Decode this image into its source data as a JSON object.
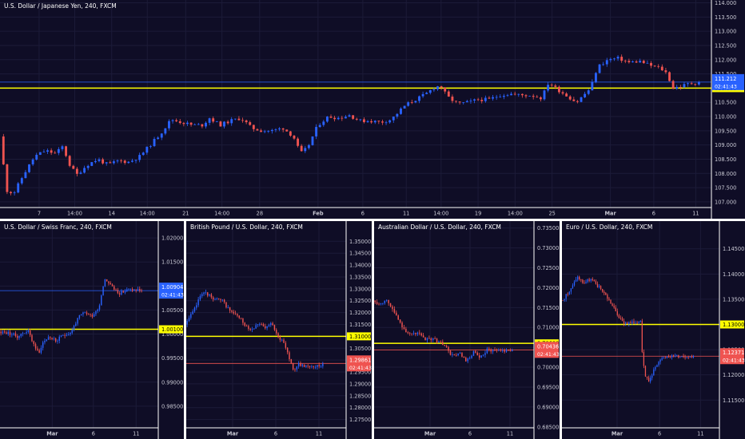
{
  "colors": {
    "background": "#0f0d26",
    "grid": "#1c1b38",
    "axis_text": "#c9c9d4",
    "up_candle": "#2962ff",
    "down_candle": "#ef5350",
    "level_line": "#ffff00",
    "level_label_bg": "#ffff00",
    "price_line_up": "#2962ff",
    "price_line_down": "#ef5350",
    "divider": "#ffffff"
  },
  "chart_data": [
    {
      "id": "usdjpy",
      "type": "candlestick",
      "title": "U.S. Dollar / Japanese Yen, 240, FXCM",
      "ylim": [
        106.8,
        114.1
      ],
      "yticks": [
        "107.000",
        "107.500",
        "108.000",
        "108.500",
        "109.000",
        "109.500",
        "110.000",
        "110.500",
        "111.000",
        "111.500",
        "112.000",
        "112.500",
        "113.000",
        "113.500",
        "114.000"
      ],
      "xticks": [
        "7",
        "14:00",
        "14",
        "14:00",
        "21",
        "14:00",
        "28",
        "Feb",
        "6",
        "11",
        "14:00",
        "19",
        "14:00",
        "25",
        "Mar",
        "6",
        "11"
      ],
      "xtick_pos": [
        0.055,
        0.105,
        0.157,
        0.207,
        0.261,
        0.312,
        0.365,
        0.447,
        0.51,
        0.571,
        0.62,
        0.672,
        0.724,
        0.776,
        0.858,
        0.919,
        0.978
      ],
      "bold_ticks": [
        "Feb",
        "Mar"
      ],
      "level": {
        "value": 111.0,
        "label": "111.000"
      },
      "current": {
        "value": 111.212,
        "label": "111.212",
        "countdown": "02:41:43",
        "direction": "up"
      },
      "path": [
        [
          0,
          109.3
        ],
        [
          0.01,
          107.4
        ],
        [
          0.02,
          107.3
        ],
        [
          0.035,
          108.0
        ],
        [
          0.05,
          108.6
        ],
        [
          0.065,
          108.8
        ],
        [
          0.08,
          108.7
        ],
        [
          0.09,
          108.95
        ],
        [
          0.1,
          108.3
        ],
        [
          0.11,
          107.95
        ],
        [
          0.125,
          108.3
        ],
        [
          0.14,
          108.5
        ],
        [
          0.155,
          108.3
        ],
        [
          0.17,
          108.45
        ],
        [
          0.185,
          108.4
        ],
        [
          0.2,
          108.6
        ],
        [
          0.215,
          109.0
        ],
        [
          0.23,
          109.4
        ],
        [
          0.245,
          109.9
        ],
        [
          0.26,
          109.8
        ],
        [
          0.275,
          109.7
        ],
        [
          0.29,
          109.7
        ],
        [
          0.3,
          109.95
        ],
        [
          0.315,
          109.7
        ],
        [
          0.33,
          109.85
        ],
        [
          0.345,
          109.95
        ],
        [
          0.36,
          109.6
        ],
        [
          0.375,
          109.5
        ],
        [
          0.39,
          109.5
        ],
        [
          0.405,
          109.6
        ],
        [
          0.42,
          109.3
        ],
        [
          0.43,
          108.7
        ],
        [
          0.44,
          108.9
        ],
        [
          0.455,
          109.7
        ],
        [
          0.47,
          110.0
        ],
        [
          0.485,
          109.95
        ],
        [
          0.5,
          110.05
        ],
        [
          0.515,
          109.85
        ],
        [
          0.53,
          109.85
        ],
        [
          0.545,
          109.8
        ],
        [
          0.56,
          109.9
        ],
        [
          0.57,
          110.15
        ],
        [
          0.58,
          110.4
        ],
        [
          0.595,
          110.6
        ],
        [
          0.61,
          110.8
        ],
        [
          0.62,
          111.0
        ],
        [
          0.63,
          111.1
        ],
        [
          0.64,
          110.7
        ],
        [
          0.655,
          110.45
        ],
        [
          0.67,
          110.5
        ],
        [
          0.685,
          110.6
        ],
        [
          0.7,
          110.6
        ],
        [
          0.715,
          110.75
        ],
        [
          0.73,
          110.8
        ],
        [
          0.745,
          110.75
        ],
        [
          0.76,
          110.75
        ],
        [
          0.775,
          110.65
        ],
        [
          0.785,
          111.2
        ],
        [
          0.795,
          111.0
        ],
        [
          0.81,
          110.75
        ],
        [
          0.825,
          110.5
        ],
        [
          0.835,
          110.75
        ],
        [
          0.845,
          111.0
        ],
        [
          0.855,
          111.75
        ],
        [
          0.87,
          112.0
        ],
        [
          0.885,
          112.05
        ],
        [
          0.9,
          111.9
        ],
        [
          0.915,
          111.95
        ],
        [
          0.93,
          111.8
        ],
        [
          0.945,
          111.7
        ],
        [
          0.955,
          111.5
        ],
        [
          0.962,
          111.0
        ],
        [
          0.972,
          111.05
        ],
        [
          0.985,
          111.15
        ],
        [
          1,
          111.2
        ]
      ],
      "n": 190,
      "seed": 11
    },
    {
      "id": "usdchf",
      "type": "candlestick",
      "title": "U.S. Dollar / Swiss Franc, 240, FXCM",
      "ylim": [
        0.9805,
        1.0235
      ],
      "yticks": [
        "0.98500",
        "0.99000",
        "0.99500",
        "1.00000",
        "1.00500",
        "1.01000",
        "1.01500",
        "1.02000"
      ],
      "xticks": [
        "Mar",
        "6",
        "11"
      ],
      "xtick_pos": [
        0.33,
        0.59,
        0.86
      ],
      "bold_ticks": [
        "Mar"
      ],
      "level": {
        "value": 1.001,
        "label": "1.00100"
      },
      "current": {
        "value": 1.00904,
        "label": "1.00904",
        "countdown": "02:41:43",
        "direction": "up"
      },
      "path": [
        [
          0,
          1.0005
        ],
        [
          0.07,
          1.0002
        ],
        [
          0.13,
          0.9995
        ],
        [
          0.2,
          1.0008
        ],
        [
          0.25,
          0.9975
        ],
        [
          0.28,
          0.9958
        ],
        [
          0.3,
          0.998
        ],
        [
          0.35,
          0.9995
        ],
        [
          0.4,
          0.9985
        ],
        [
          0.45,
          0.9998
        ],
        [
          0.5,
          1.0003
        ],
        [
          0.56,
          1.0035
        ],
        [
          0.6,
          1.0045
        ],
        [
          0.65,
          1.0038
        ],
        [
          0.7,
          1.0055
        ],
        [
          0.74,
          1.0115
        ],
        [
          0.77,
          1.0108
        ],
        [
          0.8,
          1.0095
        ],
        [
          0.85,
          1.0085
        ],
        [
          0.9,
          1.0092
        ]
      ],
      "n": 78,
      "seed": 23
    },
    {
      "id": "gbpusd",
      "type": "candlestick",
      "title": "British Pound / U.S. Dollar, 240, FXCM",
      "ylim": [
        1.2715,
        1.3585
      ],
      "yticks": [
        "1.27500",
        "1.28000",
        "1.28500",
        "1.29000",
        "1.29500",
        "1.30000",
        "1.30500",
        "1.31000",
        "1.31500",
        "1.32000",
        "1.32500",
        "1.33000",
        "1.33500",
        "1.34000",
        "1.34500",
        "1.35000"
      ],
      "xticks": [
        "Mar",
        "6",
        "11"
      ],
      "xtick_pos": [
        0.29,
        0.56,
        0.83
      ],
      "bold_ticks": [
        "Mar"
      ],
      "level": {
        "value": 1.31,
        "label": "1.31000"
      },
      "current": {
        "value": 1.29861,
        "label": "1.29861",
        "countdown": "02:41:43",
        "direction": "down"
      },
      "path": [
        [
          0,
          1.315
        ],
        [
          0.06,
          1.3205
        ],
        [
          0.12,
          1.3285
        ],
        [
          0.17,
          1.3275
        ],
        [
          0.22,
          1.3255
        ],
        [
          0.27,
          1.3248
        ],
        [
          0.33,
          1.3205
        ],
        [
          0.38,
          1.3185
        ],
        [
          0.43,
          1.3152
        ],
        [
          0.48,
          1.3128
        ],
        [
          0.53,
          1.3158
        ],
        [
          0.58,
          1.3132
        ],
        [
          0.63,
          1.3155
        ],
        [
          0.68,
          1.3098
        ],
        [
          0.73,
          1.3055
        ],
        [
          0.77,
          1.2985
        ],
        [
          0.79,
          1.2958
        ],
        [
          0.82,
          1.2982
        ],
        [
          0.85,
          1.2976
        ]
      ],
      "n": 74,
      "seed": 37
    },
    {
      "id": "audusd",
      "type": "candlestick",
      "title": "Australian Dollar / U.S. Dollar, 240, FXCM",
      "ylim": [
        0.68475,
        0.73675
      ],
      "yticks": [
        "0.68500",
        "0.69000",
        "0.69500",
        "0.70000",
        "0.70500",
        "0.71000",
        "0.71500",
        "0.72000",
        "0.72500",
        "0.73000",
        "0.73500"
      ],
      "xticks": [
        "Mar",
        "6",
        "11"
      ],
      "xtick_pos": [
        0.35,
        0.6,
        0.85
      ],
      "bold_ticks": [
        "Mar"
      ],
      "level": {
        "value": 0.706,
        "label": "0.70600"
      },
      "current": {
        "value": 0.70436,
        "label": "0.70436",
        "countdown": "02:41:43",
        "direction": "down"
      },
      "path": [
        [
          0,
          0.7168
        ],
        [
          0.05,
          0.7158
        ],
        [
          0.09,
          0.7172
        ],
        [
          0.13,
          0.7152
        ],
        [
          0.18,
          0.7118
        ],
        [
          0.22,
          0.7098
        ],
        [
          0.27,
          0.708
        ],
        [
          0.32,
          0.7088
        ],
        [
          0.37,
          0.7068
        ],
        [
          0.42,
          0.7072
        ],
        [
          0.47,
          0.7065
        ],
        [
          0.52,
          0.7052
        ],
        [
          0.57,
          0.7028
        ],
        [
          0.62,
          0.7035
        ],
        [
          0.67,
          0.7012
        ],
        [
          0.72,
          0.7038
        ],
        [
          0.77,
          0.7022
        ],
        [
          0.82,
          0.7045
        ],
        [
          0.86,
          0.7043
        ]
      ],
      "n": 72,
      "seed": 53
    },
    {
      "id": "eurusd",
      "type": "candlestick",
      "title": "Euro / U.S. Dollar, 240, FXCM",
      "ylim": [
        1.1095,
        1.1505
      ],
      "yticks": [
        "1.11500",
        "1.12000",
        "1.12500",
        "1.13000",
        "1.13500",
        "1.14000",
        "1.14500"
      ],
      "xticks": [
        "Mar",
        "6",
        "11"
      ],
      "xtick_pos": [
        0.35,
        0.62,
        0.88
      ],
      "bold_ticks": [
        "Mar"
      ],
      "level": {
        "value": 1.13,
        "label": "1.13000"
      },
      "current": {
        "value": 1.12371,
        "label": "1.12371",
        "countdown": "02:41:43",
        "direction": "down"
      },
      "path": [
        [
          0,
          1.1348
        ],
        [
          0.04,
          1.1358
        ],
        [
          0.08,
          1.1372
        ],
        [
          0.12,
          1.1395
        ],
        [
          0.17,
          1.1382
        ],
        [
          0.22,
          1.139
        ],
        [
          0.27,
          1.1378
        ],
        [
          0.32,
          1.1365
        ],
        [
          0.37,
          1.1345
        ],
        [
          0.42,
          1.1322
        ],
        [
          0.46,
          1.1305
        ],
        [
          0.52,
          1.1302
        ],
        [
          0.57,
          1.1305
        ],
        [
          0.6,
          1.131
        ],
        [
          0.61,
          1.1255
        ],
        [
          0.63,
          1.1205
        ],
        [
          0.66,
          1.1185
        ],
        [
          0.7,
          1.121
        ],
        [
          0.75,
          1.1228
        ],
        [
          0.8,
          1.1238
        ],
        [
          0.84,
          1.1237
        ]
      ],
      "n": 80,
      "seed": 71
    }
  ]
}
